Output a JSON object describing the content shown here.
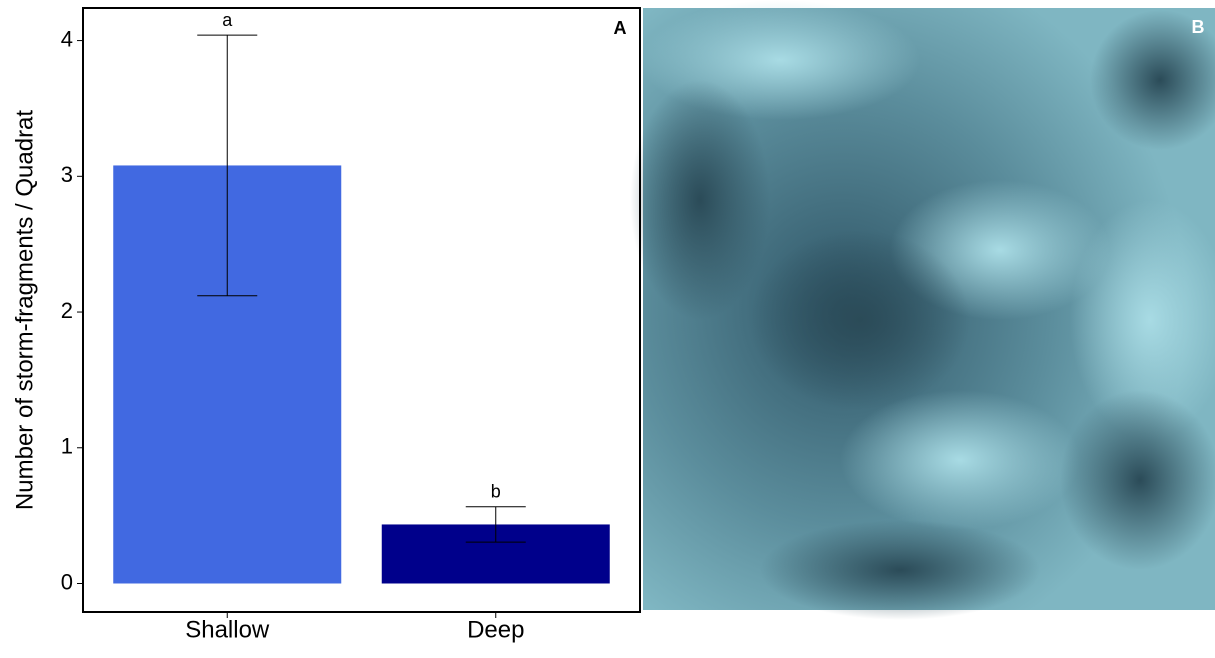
{
  "chart_data": {
    "type": "bar",
    "y_label": "Number of storm-fragments / Quadrat",
    "panel_label": "A",
    "categories": [
      "Shallow",
      "Deep"
    ],
    "values": [
      3.08,
      0.435
    ],
    "errors": [
      0.96,
      0.13
    ],
    "annotations": [
      "a",
      "b"
    ],
    "colors": [
      "#4169e1",
      "#00008b"
    ],
    "ylim": [
      -0.21,
      4.24
    ],
    "yticks": [
      0,
      1,
      2,
      3,
      4
    ]
  },
  "photo": {
    "label": "B"
  }
}
